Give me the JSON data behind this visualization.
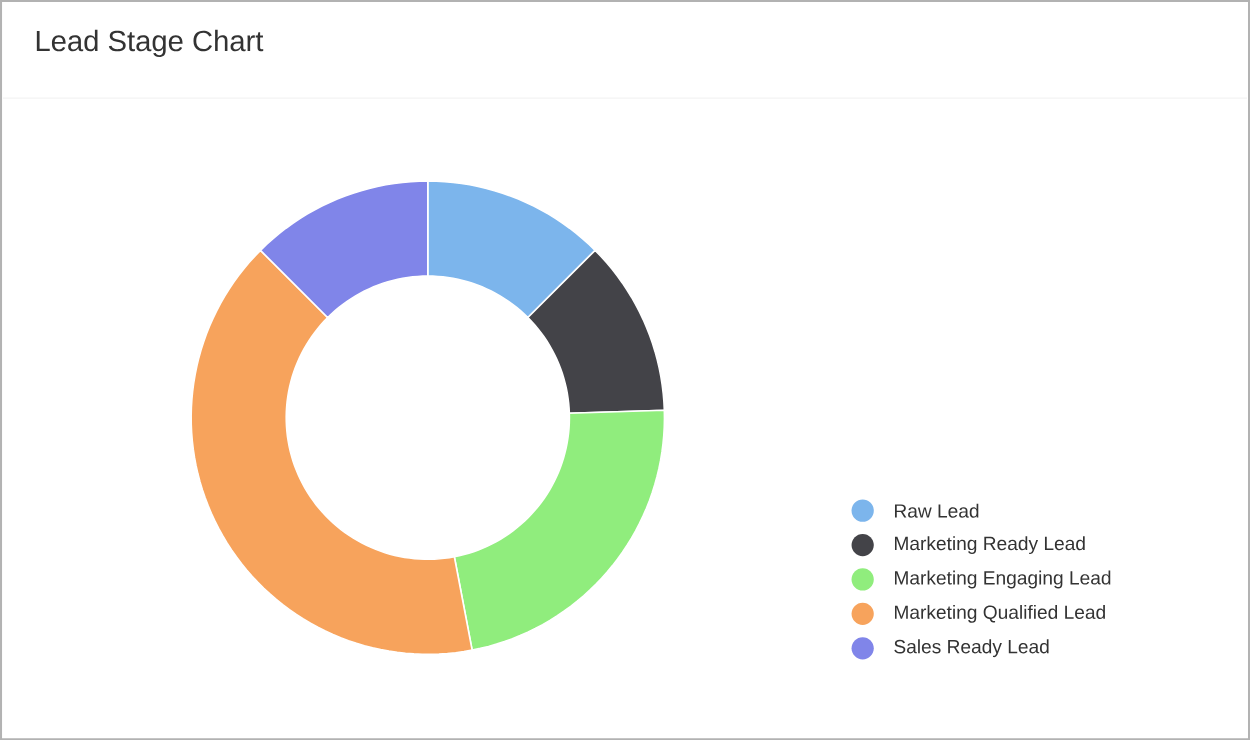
{
  "chart_data": {
    "type": "donut",
    "title": "Lead Stage Chart",
    "categories": [
      "Raw Lead",
      "Marketing Ready Lead",
      "Marketing Engaging Lead",
      "Marketing Qualified Lead",
      "Sales Ready Lead"
    ],
    "values": [
      12.5,
      12,
      22.5,
      40.5,
      12.5
    ],
    "colors": [
      "#7cb5ec",
      "#434348",
      "#90ed7d",
      "#f7a35c",
      "#8085e9"
    ],
    "legend": "bottom right"
  }
}
